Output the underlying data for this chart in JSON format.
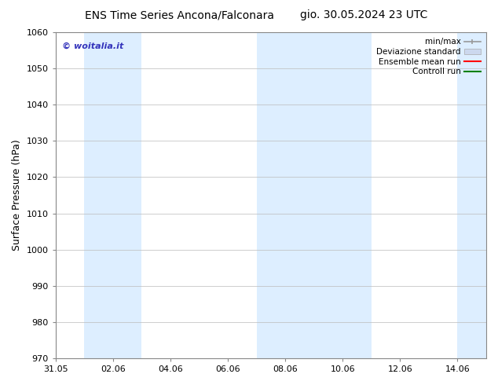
{
  "title_left": "ENS Time Series Ancona/Falconara",
  "title_right": "gio. 30.05.2024 23 UTC",
  "ylabel": "Surface Pressure (hPa)",
  "ylim": [
    970,
    1060
  ],
  "yticks": [
    970,
    980,
    990,
    1000,
    1010,
    1020,
    1030,
    1040,
    1050,
    1060
  ],
  "xtick_labels": [
    "31.05",
    "02.06",
    "04.06",
    "06.06",
    "08.06",
    "10.06",
    "12.06",
    "14.06"
  ],
  "xtick_positions": [
    0,
    2,
    4,
    6,
    8,
    10,
    12,
    14
  ],
  "xlim": [
    0,
    15
  ],
  "shaded_bands": [
    {
      "x_start": 1,
      "x_end": 3
    },
    {
      "x_start": 7,
      "x_end": 11
    },
    {
      "x_start": 14,
      "x_end": 15
    }
  ],
  "band_color": "#ddeeff",
  "watermark": "© woitalia.it",
  "watermark_color": "#3333bb",
  "legend_labels": [
    "min/max",
    "Deviazione standard",
    "Ensemble mean run",
    "Controll run"
  ],
  "legend_colors_line": [
    "#999999",
    "#bbbbcc",
    "red",
    "green"
  ],
  "bg_color": "#ffffff",
  "grid_color": "#bbbbbb",
  "spine_color": "#888888",
  "title_fontsize": 10,
  "axis_label_fontsize": 9,
  "tick_fontsize": 8,
  "legend_fontsize": 7.5,
  "watermark_fontsize": 8
}
